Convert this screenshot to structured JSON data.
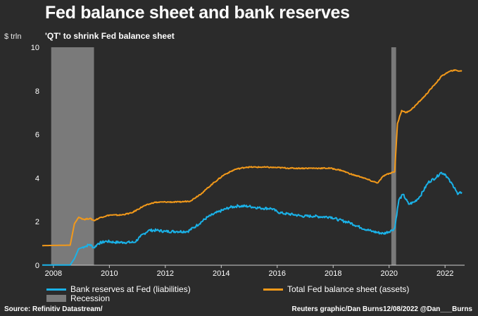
{
  "chart_data": {
    "type": "line",
    "title": "Fed balance sheet and bank reserves",
    "subtitle": "'QT' to shrink Fed balance sheet",
    "ylabel": "$ trln",
    "xlabel": "",
    "xlim": [
      2007.6,
      2022.7
    ],
    "ylim": [
      0,
      10
    ],
    "yticks": [
      0,
      2,
      4,
      6,
      8,
      10
    ],
    "xticks": [
      2008,
      2010,
      2012,
      2014,
      2016,
      2018,
      2020,
      2022
    ],
    "recessions": [
      [
        2007.92,
        2009.45
      ],
      [
        2020.08,
        2020.25
      ]
    ],
    "series": [
      {
        "name": "Bank reserves at Fed (liabilities)",
        "color": "#1ab2e8",
        "points": [
          [
            2007.6,
            0.01
          ],
          [
            2008.6,
            0.01
          ],
          [
            2008.75,
            0.3
          ],
          [
            2008.9,
            0.75
          ],
          [
            2009.1,
            0.85
          ],
          [
            2009.3,
            0.95
          ],
          [
            2009.45,
            0.8
          ],
          [
            2009.6,
            1.0
          ],
          [
            2009.9,
            1.1
          ],
          [
            2010.2,
            1.05
          ],
          [
            2010.5,
            1.05
          ],
          [
            2010.9,
            1.05
          ],
          [
            2011.1,
            1.3
          ],
          [
            2011.4,
            1.6
          ],
          [
            2011.7,
            1.6
          ],
          [
            2012.0,
            1.55
          ],
          [
            2012.4,
            1.55
          ],
          [
            2012.8,
            1.55
          ],
          [
            2013.1,
            1.8
          ],
          [
            2013.5,
            2.2
          ],
          [
            2013.9,
            2.45
          ],
          [
            2014.3,
            2.65
          ],
          [
            2014.6,
            2.72
          ],
          [
            2015.0,
            2.7
          ],
          [
            2015.4,
            2.62
          ],
          [
            2015.8,
            2.6
          ],
          [
            2016.0,
            2.45
          ],
          [
            2016.2,
            2.38
          ],
          [
            2016.6,
            2.32
          ],
          [
            2016.9,
            2.25
          ],
          [
            2017.3,
            2.25
          ],
          [
            2017.6,
            2.22
          ],
          [
            2017.9,
            2.22
          ],
          [
            2018.2,
            2.08
          ],
          [
            2018.6,
            1.95
          ],
          [
            2019.0,
            1.72
          ],
          [
            2019.4,
            1.55
          ],
          [
            2019.8,
            1.45
          ],
          [
            2020.1,
            1.6
          ],
          [
            2020.2,
            1.7
          ],
          [
            2020.35,
            3.0
          ],
          [
            2020.5,
            3.25
          ],
          [
            2020.7,
            2.8
          ],
          [
            2020.9,
            2.9
          ],
          [
            2021.1,
            3.15
          ],
          [
            2021.4,
            3.8
          ],
          [
            2021.7,
            4.05
          ],
          [
            2021.85,
            4.25
          ],
          [
            2022.0,
            4.18
          ],
          [
            2022.2,
            3.8
          ],
          [
            2022.35,
            3.55
          ],
          [
            2022.45,
            3.25
          ],
          [
            2022.6,
            3.35
          ]
        ]
      },
      {
        "name": "Total Fed balance sheet (assets)",
        "color": "#f2991a",
        "points": [
          [
            2007.6,
            0.9
          ],
          [
            2008.6,
            0.92
          ],
          [
            2008.75,
            1.9
          ],
          [
            2008.9,
            2.2
          ],
          [
            2009.1,
            2.1
          ],
          [
            2009.3,
            2.15
          ],
          [
            2009.45,
            2.05
          ],
          [
            2009.7,
            2.2
          ],
          [
            2010.0,
            2.3
          ],
          [
            2010.4,
            2.3
          ],
          [
            2010.8,
            2.4
          ],
          [
            2011.2,
            2.7
          ],
          [
            2011.6,
            2.88
          ],
          [
            2012.0,
            2.9
          ],
          [
            2012.5,
            2.9
          ],
          [
            2012.9,
            2.95
          ],
          [
            2013.3,
            3.3
          ],
          [
            2013.7,
            3.75
          ],
          [
            2014.1,
            4.15
          ],
          [
            2014.5,
            4.4
          ],
          [
            2014.9,
            4.5
          ],
          [
            2015.5,
            4.5
          ],
          [
            2016.0,
            4.48
          ],
          [
            2016.5,
            4.45
          ],
          [
            2017.0,
            4.45
          ],
          [
            2017.5,
            4.45
          ],
          [
            2017.9,
            4.45
          ],
          [
            2018.3,
            4.35
          ],
          [
            2018.7,
            4.15
          ],
          [
            2019.0,
            4.05
          ],
          [
            2019.4,
            3.85
          ],
          [
            2019.6,
            3.78
          ],
          [
            2019.8,
            4.1
          ],
          [
            2020.1,
            4.25
          ],
          [
            2020.2,
            4.3
          ],
          [
            2020.3,
            6.5
          ],
          [
            2020.45,
            7.1
          ],
          [
            2020.6,
            7.0
          ],
          [
            2020.8,
            7.15
          ],
          [
            2021.0,
            7.4
          ],
          [
            2021.3,
            7.8
          ],
          [
            2021.6,
            8.25
          ],
          [
            2021.9,
            8.7
          ],
          [
            2022.1,
            8.85
          ],
          [
            2022.3,
            8.95
          ],
          [
            2022.6,
            8.9
          ]
        ]
      }
    ],
    "legend": [
      {
        "label": "Bank reserves at Fed (liabilities)",
        "kind": "line",
        "color": "#1ab2e8"
      },
      {
        "label": "Total Fed balance sheet (assets)",
        "kind": "line",
        "color": "#f2991a"
      },
      {
        "label": "Recession",
        "kind": "box",
        "color": "#7a7a7a"
      }
    ]
  },
  "footer": {
    "source": "Source: Refinitiv Datastream/",
    "credit": "Reuters graphic/Dan Burns12/08/2022 @Dan___Burns"
  }
}
